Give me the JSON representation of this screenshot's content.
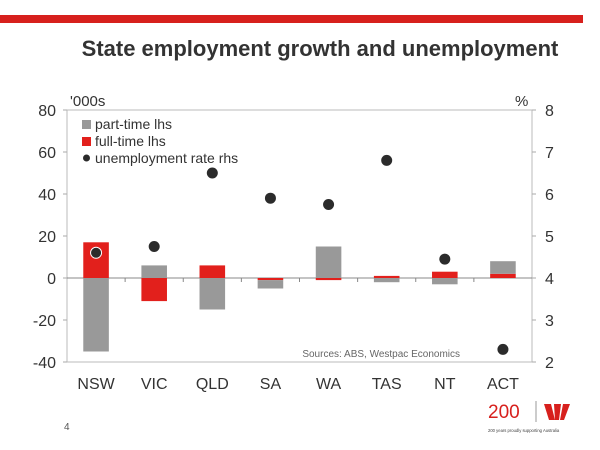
{
  "page": {
    "title": "State employment growth and unemployment",
    "page_number": "4",
    "logo_text": "200",
    "logo_tagline": "200 years proudly supporting Australia"
  },
  "colors": {
    "accent": "#d7201d",
    "part_time": "#999999",
    "full_time": "#e2201c",
    "dot": "#2b2b2b"
  },
  "chart_data": {
    "type": "bar",
    "title": "State employment growth and unemployment",
    "categories": [
      "NSW",
      "VIC",
      "QLD",
      "SA",
      "WA",
      "TAS",
      "NT",
      "ACT"
    ],
    "series": [
      {
        "name": "part-time lhs",
        "axis": "left",
        "values": [
          -35,
          6,
          -15,
          -4,
          15,
          -2,
          -3,
          6
        ]
      },
      {
        "name": "full-time lhs",
        "axis": "left",
        "values": [
          17,
          -11,
          6,
          -1,
          -1,
          1,
          3,
          2
        ]
      },
      {
        "name": "unemployment rate rhs",
        "axis": "right",
        "type": "scatter",
        "values": [
          4.6,
          4.75,
          6.5,
          5.9,
          5.75,
          6.8,
          4.45,
          2.3
        ]
      }
    ],
    "ylabel": "'000s",
    "y2label": "%",
    "ylim": [
      -40,
      80
    ],
    "y2lim": [
      2,
      8
    ],
    "yticks": [
      "-40",
      "-20",
      "0",
      "20",
      "40",
      "60",
      "80"
    ],
    "y2ticks": [
      "2",
      "3",
      "4",
      "5",
      "6",
      "7",
      "8"
    ],
    "legend_position": "top-left",
    "annotation": "Sources: ABS, Westpac Economics"
  }
}
